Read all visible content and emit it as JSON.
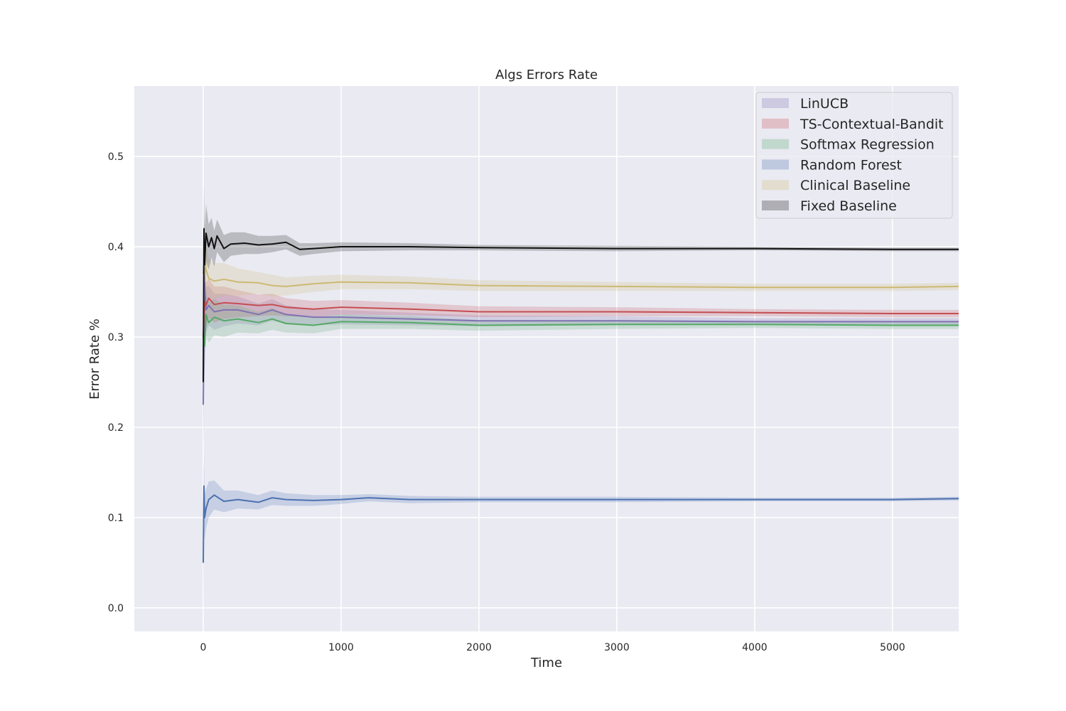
{
  "chart_data": {
    "type": "line",
    "title": "Algs Errors Rate",
    "xlabel": "Time",
    "ylabel": "Error Rate %",
    "xlim": [
      -500,
      5480
    ],
    "ylim": [
      -0.026,
      0.578
    ],
    "xticks": [
      0,
      1000,
      2000,
      3000,
      4000,
      5000
    ],
    "yticks": [
      0.0,
      0.1,
      0.2,
      0.3,
      0.4,
      0.5
    ],
    "grid": true,
    "background": "#eaeaf2",
    "legend_position": "top-right",
    "band": "shaded confidence interval around each line",
    "series": [
      {
        "name": "LinUCB",
        "color": "#8172b3",
        "x": [
          0,
          10,
          20,
          40,
          80,
          150,
          250,
          400,
          500,
          600,
          800,
          1000,
          1500,
          2000,
          3000,
          4000,
          5000,
          5480
        ],
        "values": [
          0.225,
          0.36,
          0.33,
          0.335,
          0.328,
          0.33,
          0.33,
          0.325,
          0.33,
          0.325,
          0.322,
          0.322,
          0.32,
          0.318,
          0.318,
          0.317,
          0.317,
          0.317
        ],
        "band": [
          0.05,
          0.03,
          0.025,
          0.022,
          0.02,
          0.018,
          0.015,
          0.012,
          0.012,
          0.01,
          0.009,
          0.008,
          0.007,
          0.006,
          0.005,
          0.004,
          0.004,
          0.004
        ]
      },
      {
        "name": "TS-Contextual-Bandit",
        "color": "#c44e52",
        "x": [
          0,
          10,
          20,
          40,
          80,
          150,
          250,
          400,
          500,
          600,
          800,
          1000,
          1500,
          2000,
          3000,
          4000,
          5000,
          5480
        ],
        "values": [
          0.3,
          0.34,
          0.335,
          0.343,
          0.336,
          0.338,
          0.337,
          0.335,
          0.336,
          0.333,
          0.331,
          0.333,
          0.331,
          0.328,
          0.328,
          0.327,
          0.326,
          0.326
        ],
        "band": [
          0.05,
          0.03,
          0.025,
          0.022,
          0.02,
          0.018,
          0.015,
          0.012,
          0.012,
          0.01,
          0.009,
          0.008,
          0.007,
          0.006,
          0.005,
          0.004,
          0.004,
          0.004
        ]
      },
      {
        "name": "Softmax Regression",
        "color": "#55a868",
        "x": [
          0,
          10,
          20,
          40,
          80,
          150,
          250,
          400,
          500,
          600,
          800,
          1000,
          1500,
          2000,
          3000,
          4000,
          5000,
          5480
        ],
        "values": [
          0.3,
          0.29,
          0.325,
          0.316,
          0.322,
          0.318,
          0.32,
          0.316,
          0.32,
          0.315,
          0.313,
          0.317,
          0.316,
          0.313,
          0.314,
          0.314,
          0.313,
          0.313
        ],
        "band": [
          0.05,
          0.03,
          0.025,
          0.022,
          0.02,
          0.018,
          0.015,
          0.012,
          0.012,
          0.01,
          0.009,
          0.008,
          0.007,
          0.006,
          0.005,
          0.004,
          0.004,
          0.004
        ]
      },
      {
        "name": "Random Forest",
        "color": "#4c72b0",
        "x": [
          0,
          5,
          10,
          20,
          40,
          80,
          150,
          250,
          400,
          500,
          600,
          800,
          1000,
          1200,
          1500,
          2000,
          3000,
          4000,
          5000,
          5480
        ],
        "values": [
          0.05,
          0.135,
          0.1,
          0.11,
          0.12,
          0.125,
          0.118,
          0.12,
          0.117,
          0.122,
          0.12,
          0.119,
          0.12,
          0.122,
          0.12,
          0.12,
          0.12,
          0.12,
          0.12,
          0.121
        ],
        "band": [
          0.06,
          0.04,
          0.025,
          0.022,
          0.02,
          0.016,
          0.012,
          0.01,
          0.008,
          0.008,
          0.007,
          0.006,
          0.005,
          0.004,
          0.004,
          0.003,
          0.003,
          0.002,
          0.002,
          0.002
        ]
      },
      {
        "name": "Clinical Baseline",
        "color": "#ccb974",
        "x": [
          0,
          10,
          20,
          40,
          80,
          150,
          250,
          400,
          500,
          600,
          800,
          1000,
          1500,
          2000,
          3000,
          4000,
          5000,
          5480
        ],
        "values": [
          0.37,
          0.39,
          0.375,
          0.365,
          0.362,
          0.364,
          0.361,
          0.36,
          0.357,
          0.356,
          0.359,
          0.361,
          0.36,
          0.357,
          0.356,
          0.355,
          0.355,
          0.356
        ],
        "band": [
          0.05,
          0.03,
          0.025,
          0.022,
          0.02,
          0.018,
          0.015,
          0.012,
          0.012,
          0.01,
          0.009,
          0.008,
          0.007,
          0.006,
          0.005,
          0.004,
          0.004,
          0.004
        ]
      },
      {
        "name": "Fixed Baseline",
        "color": "#111111",
        "x": [
          0,
          5,
          10,
          20,
          40,
          60,
          80,
          100,
          150,
          200,
          300,
          400,
          500,
          600,
          700,
          800,
          1000,
          1500,
          2000,
          3000,
          4000,
          5000,
          5480
        ],
        "values": [
          0.25,
          0.42,
          0.38,
          0.415,
          0.4,
          0.41,
          0.398,
          0.412,
          0.398,
          0.403,
          0.404,
          0.402,
          0.403,
          0.405,
          0.397,
          0.398,
          0.4,
          0.4,
          0.399,
          0.398,
          0.398,
          0.397,
          0.397
        ],
        "band": [
          0.08,
          0.05,
          0.04,
          0.032,
          0.025,
          0.022,
          0.02,
          0.018,
          0.015,
          0.013,
          0.012,
          0.01,
          0.009,
          0.008,
          0.007,
          0.006,
          0.005,
          0.004,
          0.003,
          0.003,
          0.002,
          0.002,
          0.002
        ]
      }
    ]
  }
}
